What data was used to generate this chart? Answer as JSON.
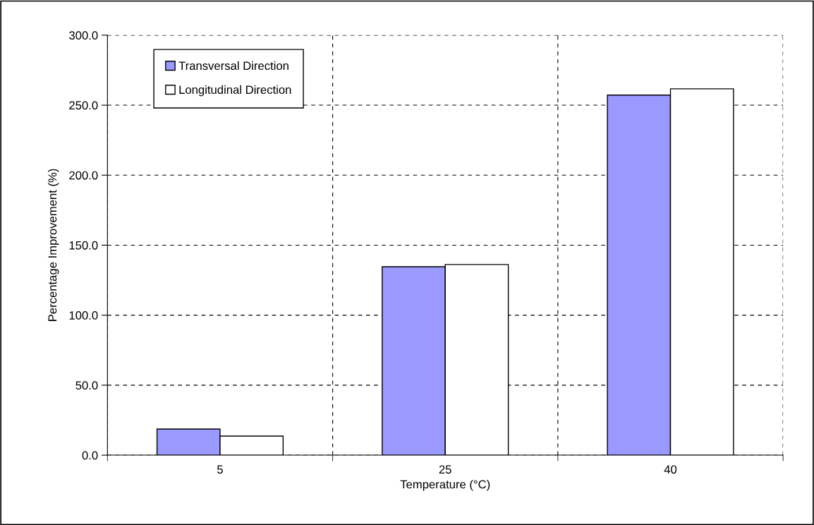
{
  "chart_data": {
    "type": "bar",
    "xlabel": "Temperature (°C)",
    "ylabel": "Percentage Improvement (%)",
    "categories": [
      "5",
      "25",
      "40"
    ],
    "series": [
      {
        "name": "Transversal Direction",
        "color": "#9999ff",
        "values": [
          18.7,
          134.6,
          257.2
        ]
      },
      {
        "name": "Longitudinal Direction",
        "color": "#ffffff",
        "values": [
          13.6,
          136.2,
          261.7
        ]
      }
    ],
    "ylim": [
      0,
      300
    ],
    "yticks": [
      {
        "value": 0,
        "label": "0.0"
      },
      {
        "value": 50,
        "label": "50.0"
      },
      {
        "value": 100,
        "label": "100.0"
      },
      {
        "value": 150,
        "label": "150.0"
      },
      {
        "value": 200,
        "label": "200.0"
      },
      {
        "value": 250,
        "label": "250.0"
      },
      {
        "value": 300,
        "label": "300.0"
      }
    ],
    "grid": true,
    "legend": "top left"
  }
}
